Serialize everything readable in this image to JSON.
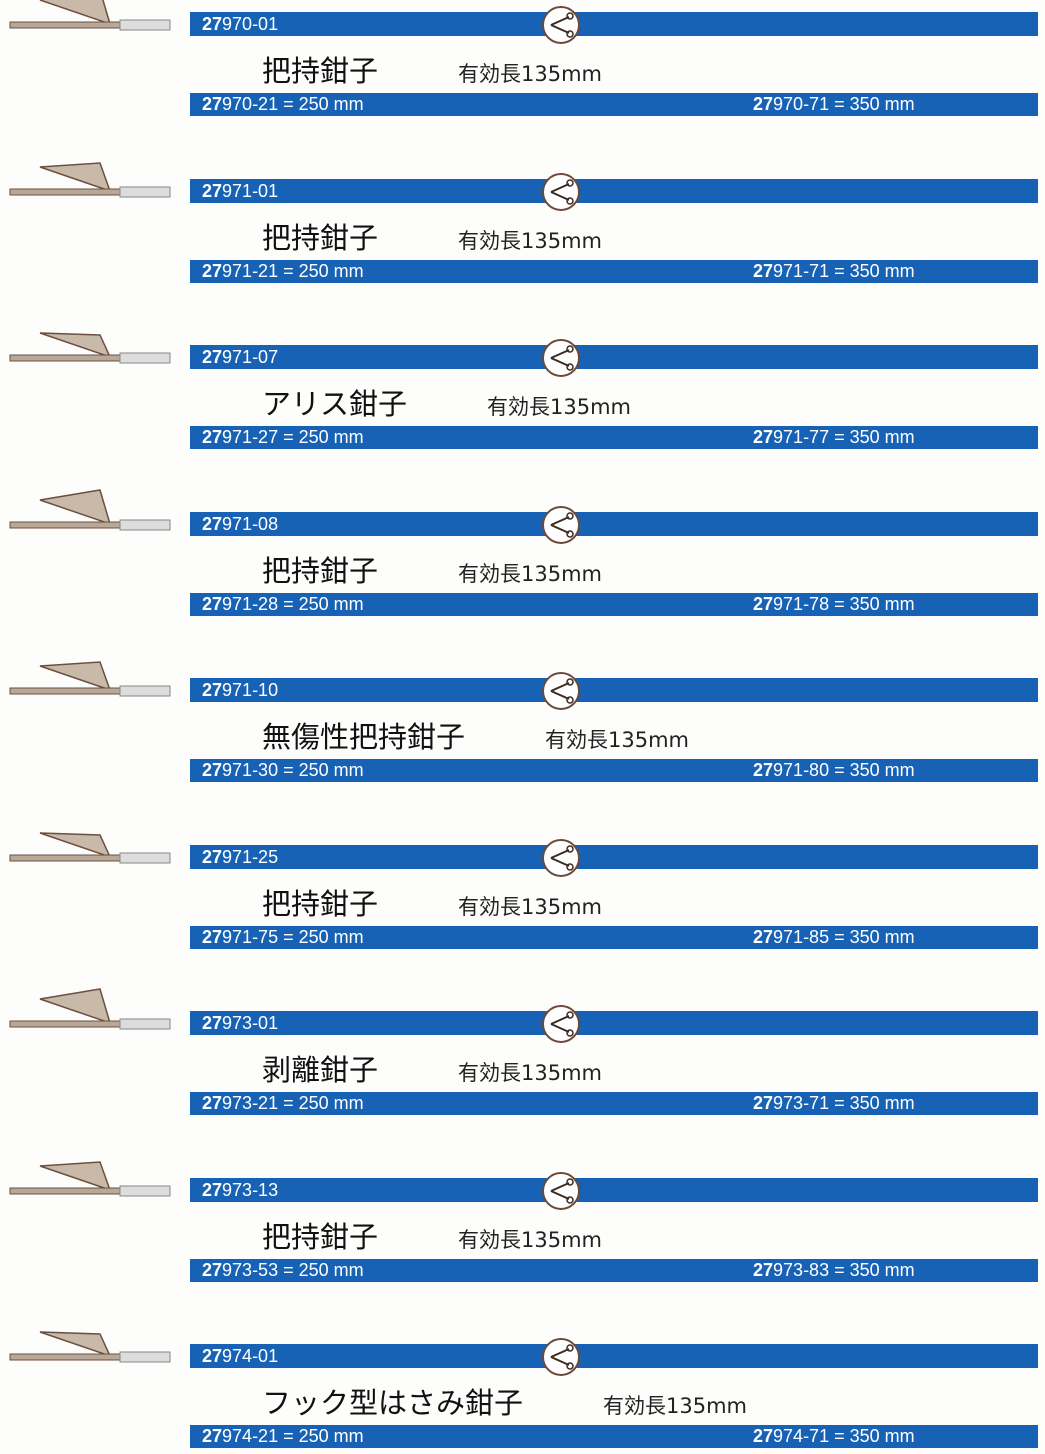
{
  "items": [
    {
      "code": {
        "prefix": "27",
        "rest": "970-01"
      },
      "name": "把持鉗子",
      "length": "有効長135mm",
      "short": {
        "prefix": "27",
        "rest": "970-21 = 250 mm"
      },
      "long": {
        "prefix": "27",
        "rest": "970-71 = 350 mm"
      }
    },
    {
      "code": {
        "prefix": "27",
        "rest": "971-01"
      },
      "name": "把持鉗子",
      "length": "有効長135mm",
      "short": {
        "prefix": "27",
        "rest": "971-21 = 250 mm"
      },
      "long": {
        "prefix": "27",
        "rest": "971-71 = 350 mm"
      }
    },
    {
      "code": {
        "prefix": "27",
        "rest": "971-07"
      },
      "name": "アリス鉗子",
      "length": "有効長135mm",
      "short": {
        "prefix": "27",
        "rest": "971-27 = 250 mm"
      },
      "long": {
        "prefix": "27",
        "rest": "971-77 = 350 mm"
      }
    },
    {
      "code": {
        "prefix": "27",
        "rest": "971-08"
      },
      "name": "把持鉗子",
      "length": "有効長135mm",
      "short": {
        "prefix": "27",
        "rest": "971-28 = 250 mm"
      },
      "long": {
        "prefix": "27",
        "rest": "971-78 = 350 mm"
      }
    },
    {
      "code": {
        "prefix": "27",
        "rest": "971-10"
      },
      "name": "無傷性把持鉗子",
      "length": "有効長135mm",
      "short": {
        "prefix": "27",
        "rest": "971-30 = 250 mm"
      },
      "long": {
        "prefix": "27",
        "rest": "971-80 = 350 mm"
      }
    },
    {
      "code": {
        "prefix": "27",
        "rest": "971-25"
      },
      "name": "把持鉗子",
      "length": "有効長135mm",
      "short": {
        "prefix": "27",
        "rest": "971-75 = 250 mm"
      },
      "long": {
        "prefix": "27",
        "rest": "971-85 = 350 mm"
      }
    },
    {
      "code": {
        "prefix": "27",
        "rest": "973-01"
      },
      "name": "剥離鉗子",
      "length": "有効長135mm",
      "short": {
        "prefix": "27",
        "rest": "973-21 = 250 mm"
      },
      "long": {
        "prefix": "27",
        "rest": "973-71 = 350 mm"
      }
    },
    {
      "code": {
        "prefix": "27",
        "rest": "973-13"
      },
      "name": "把持鉗子",
      "length": "有効長135mm",
      "short": {
        "prefix": "27",
        "rest": "973-53 = 250 mm"
      },
      "long": {
        "prefix": "27",
        "rest": "973-83 = 350 mm"
      }
    },
    {
      "code": {
        "prefix": "27",
        "rest": "974-01"
      },
      "name": "フック型はさみ鉗子",
      "length": "有効長135mm",
      "short": {
        "prefix": "27",
        "rest": "974-21 = 250 mm"
      },
      "long": {
        "prefix": "27",
        "rest": "974-71 = 350 mm"
      }
    }
  ]
}
